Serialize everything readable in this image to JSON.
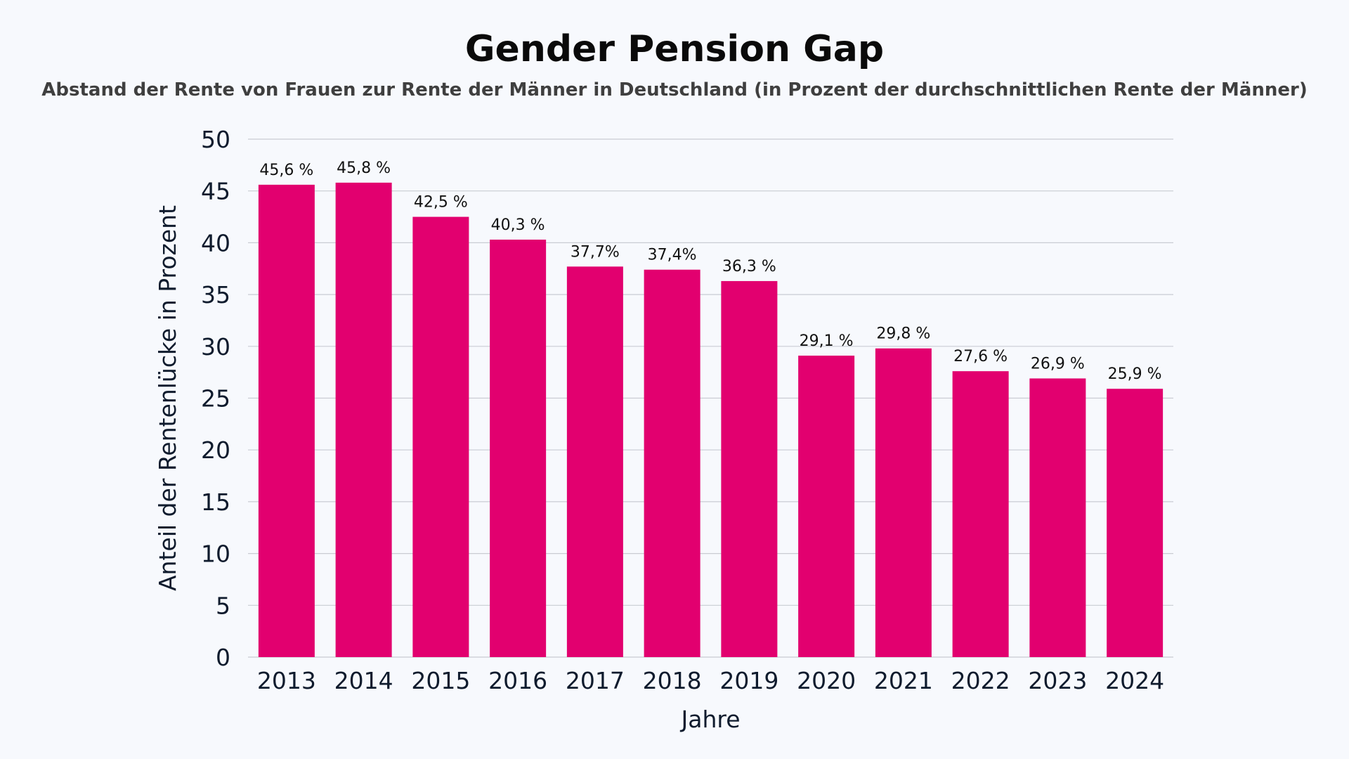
{
  "chart_data": {
    "type": "bar",
    "title": "Gender Pension Gap",
    "subtitle": "Abstand der Rente von Frauen zur Rente der Männer in Deutschland (in Prozent der durchschnittlichen Rente der Männer)",
    "xlabel": "Jahre",
    "ylabel": "Anteil der Rentenlücke in Prozent",
    "categories": [
      "2013",
      "2014",
      "2015",
      "2016",
      "2017",
      "2018",
      "2019",
      "2020",
      "2021",
      "2022",
      "2023",
      "2024"
    ],
    "values": [
      45.6,
      45.8,
      42.5,
      40.3,
      37.7,
      37.4,
      36.3,
      29.1,
      29.8,
      27.6,
      26.9,
      25.9
    ],
    "data_labels": [
      "45,6 %",
      "45,8 %",
      "42,5 %",
      "40,3 %",
      "37,7%",
      "37,4%",
      "36,3 %",
      "29,1 %",
      "29,8 %",
      "27,6 %",
      "26,9 %",
      "25,9 %"
    ],
    "ylim": [
      0,
      50
    ],
    "yticks": [
      0,
      5,
      10,
      15,
      20,
      25,
      30,
      35,
      40,
      45,
      50
    ],
    "grid": true,
    "legend": "none",
    "bar_color": "#e2006f",
    "grid_color": "#c9ccd3"
  }
}
